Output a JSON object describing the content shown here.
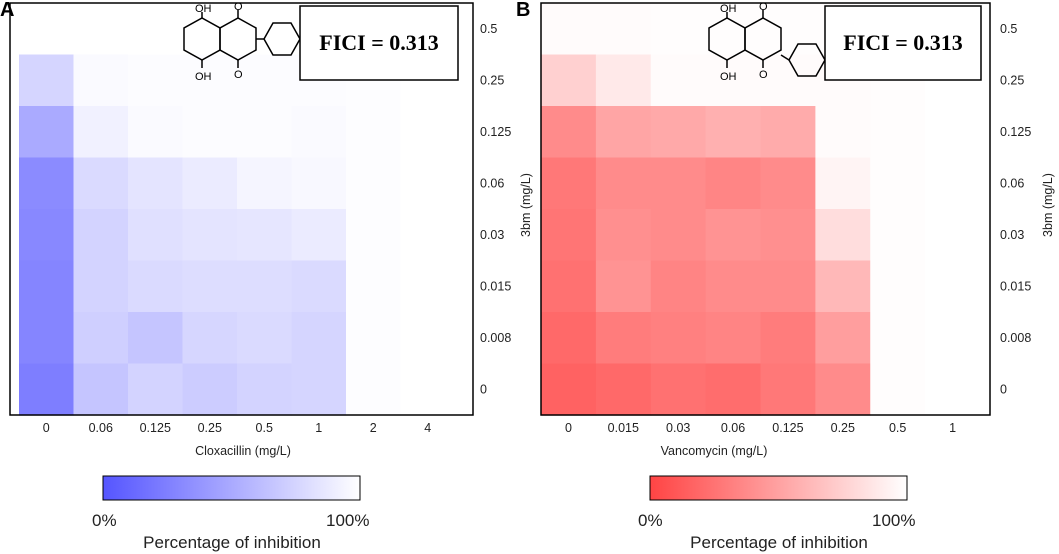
{
  "figure": {
    "panel_a_letter": "A",
    "panel_b_letter": "B"
  },
  "chart_data": [
    {
      "type": "heatmap",
      "panel": "A",
      "title": "",
      "xlabel": "Cloxacillin (mg/L)",
      "ylabel": "",
      "x_categories": [
        "0",
        "0.06",
        "0.125",
        "0.25",
        "0.5",
        "1",
        "2",
        "4"
      ],
      "y_categories": [
        "0.5",
        "0.25",
        "0.125",
        "0.06",
        "0.03",
        "0.015",
        "0.008",
        "0"
      ],
      "values_unit": "fraction of full color intensity (0 = white)",
      "values": [
        [
          0.0,
          0.0,
          0.0,
          0.0,
          0.0,
          0.0,
          0.0,
          0.0
        ],
        [
          0.25,
          0.03,
          0.02,
          0.02,
          0.02,
          0.02,
          0.01,
          0.0
        ],
        [
          0.5,
          0.08,
          0.03,
          0.02,
          0.02,
          0.03,
          0.01,
          0.0
        ],
        [
          0.68,
          0.22,
          0.16,
          0.12,
          0.06,
          0.04,
          0.01,
          0.0
        ],
        [
          0.7,
          0.26,
          0.18,
          0.16,
          0.15,
          0.12,
          0.01,
          0.0
        ],
        [
          0.72,
          0.26,
          0.22,
          0.2,
          0.2,
          0.22,
          0.01,
          0.0
        ],
        [
          0.72,
          0.28,
          0.34,
          0.24,
          0.22,
          0.25,
          0.01,
          0.0
        ],
        [
          0.76,
          0.34,
          0.26,
          0.3,
          0.26,
          0.25,
          0.01,
          0.0
        ]
      ],
      "color_low": "#ffffff",
      "color_high": "#5555ff",
      "fici_label": "FICI = 0.313",
      "legend_min": "0%",
      "legend_max": "100%",
      "legend_title": "Percentage of inhibition"
    },
    {
      "type": "heatmap",
      "panel": "B",
      "title": "",
      "xlabel": "Vancomycin (mg/L)",
      "ylabel": "3bm (mg/L)",
      "x_categories": [
        "0",
        "0.015",
        "0.03",
        "0.06",
        "0.125",
        "0.25",
        "0.5",
        "1"
      ],
      "y_categories": [
        "0.5",
        "0.25",
        "0.125",
        "0.06",
        "0.03",
        "0.015",
        "0.008",
        "0"
      ],
      "values_unit": "fraction of full color intensity (0 = white)",
      "values": [
        [
          0.02,
          0.02,
          0.01,
          0.01,
          0.01,
          0.01,
          0.0,
          0.0
        ],
        [
          0.25,
          0.12,
          0.02,
          0.02,
          0.02,
          0.02,
          0.01,
          0.0
        ],
        [
          0.62,
          0.48,
          0.46,
          0.42,
          0.45,
          0.02,
          0.01,
          0.0
        ],
        [
          0.72,
          0.62,
          0.62,
          0.65,
          0.62,
          0.06,
          0.01,
          0.0
        ],
        [
          0.74,
          0.6,
          0.62,
          0.58,
          0.6,
          0.18,
          0.01,
          0.0
        ],
        [
          0.76,
          0.58,
          0.66,
          0.62,
          0.62,
          0.38,
          0.01,
          0.0
        ],
        [
          0.8,
          0.7,
          0.68,
          0.66,
          0.7,
          0.52,
          0.01,
          0.0
        ],
        [
          0.84,
          0.8,
          0.76,
          0.78,
          0.72,
          0.62,
          0.01,
          0.0
        ]
      ],
      "color_low": "#ffffff",
      "color_high": "#ff4444",
      "fici_label": "FICI = 0.313",
      "legend_min": "0%",
      "legend_max": "100%",
      "legend_title": "Percentage of inhibition"
    }
  ],
  "molecule": {
    "label_top": "OH",
    "label_bottom": "OH",
    "label_o_top": "O",
    "label_o_bottom": "O"
  }
}
